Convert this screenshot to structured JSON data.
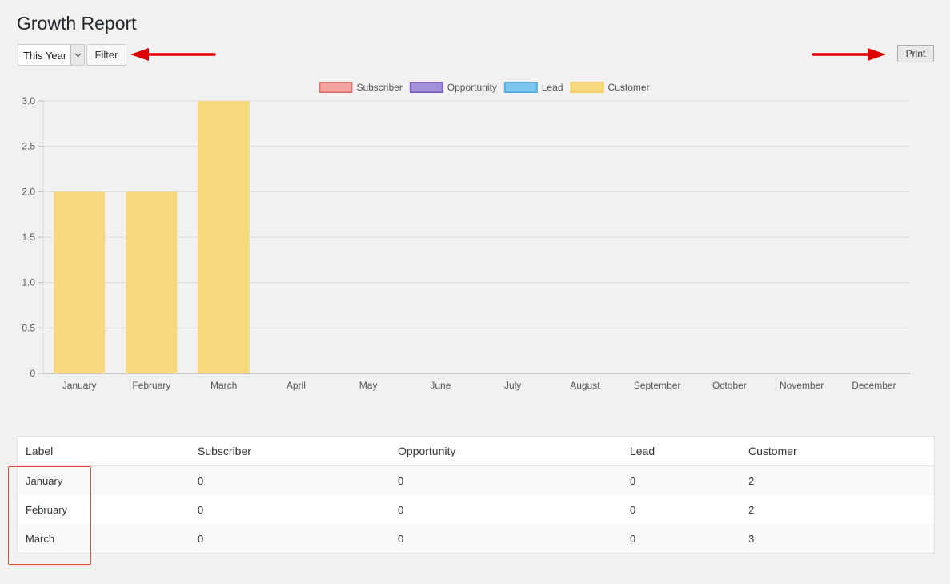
{
  "page": {
    "title": "Growth Report"
  },
  "filter": {
    "selected": "This Year",
    "button_label": "Filter"
  },
  "print": {
    "button_label": "Print"
  },
  "colors": {
    "subscriber": "#f5a5a0",
    "opportunity": "#a391d9",
    "lead": "#7dc7ef",
    "customer": "#f7d87c",
    "arrow": "#dd0000",
    "highlight": "#e0502a"
  },
  "chart_data": {
    "type": "bar",
    "categories": [
      "January",
      "February",
      "March",
      "April",
      "May",
      "June",
      "July",
      "August",
      "September",
      "October",
      "November",
      "December"
    ],
    "series": [
      {
        "name": "Subscriber",
        "values": [
          0,
          0,
          0,
          0,
          0,
          0,
          0,
          0,
          0,
          0,
          0,
          0
        ]
      },
      {
        "name": "Opportunity",
        "values": [
          0,
          0,
          0,
          0,
          0,
          0,
          0,
          0,
          0,
          0,
          0,
          0
        ]
      },
      {
        "name": "Lead",
        "values": [
          0,
          0,
          0,
          0,
          0,
          0,
          0,
          0,
          0,
          0,
          0,
          0
        ]
      },
      {
        "name": "Customer",
        "values": [
          2,
          2,
          3,
          0,
          0,
          0,
          0,
          0,
          0,
          0,
          0,
          0
        ]
      }
    ],
    "yticks": [
      "0",
      "0.5",
      "1.0",
      "1.5",
      "2.0",
      "2.5",
      "3.0"
    ],
    "ylim": [
      0,
      3
    ],
    "legend_position": "top-center",
    "grid": true,
    "title": "",
    "xlabel": "",
    "ylabel": ""
  },
  "table": {
    "headers": [
      "Label",
      "Subscriber",
      "Opportunity",
      "Lead",
      "Customer"
    ],
    "rows": [
      [
        "January",
        "0",
        "0",
        "0",
        "2"
      ],
      [
        "February",
        "0",
        "0",
        "0",
        "2"
      ],
      [
        "March",
        "0",
        "0",
        "0",
        "3"
      ]
    ]
  }
}
